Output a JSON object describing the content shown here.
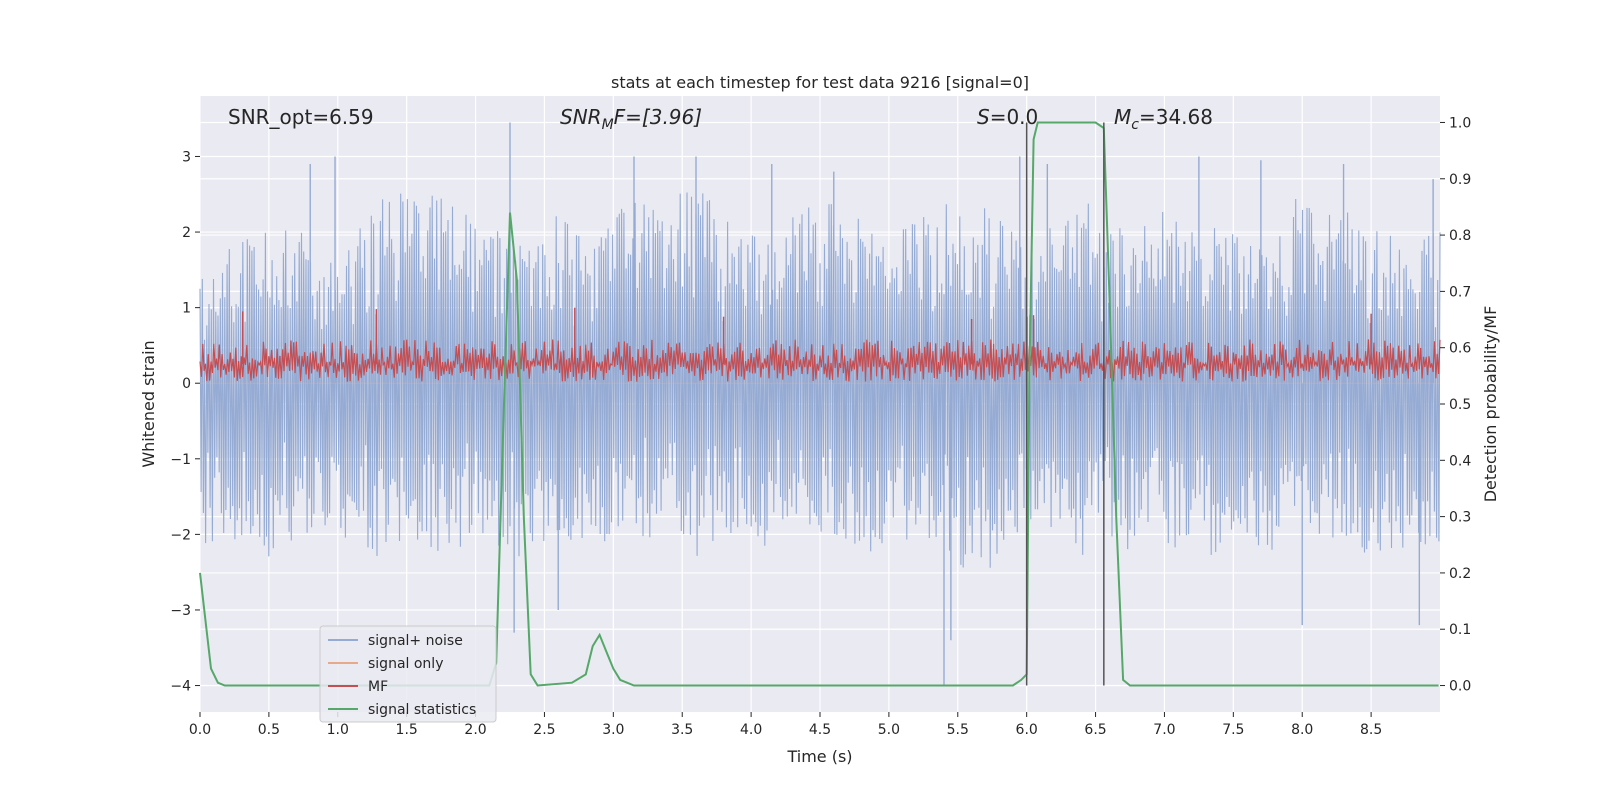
{
  "chart_data": {
    "type": "line",
    "title": "stats at each timestep for test data 9216 [signal=0]",
    "xlabel": "Time (s)",
    "ylabel_left": "Whitened strain",
    "ylabel_right": "Detection probability/MF",
    "xlim": [
      0.0,
      9.0
    ],
    "ylim_left": [
      -4.35,
      3.8
    ],
    "ylim_right": [
      -0.047,
      1.047
    ],
    "x_ticks": [
      0.0,
      0.5,
      1.0,
      1.5,
      2.0,
      2.5,
      3.0,
      3.5,
      4.0,
      4.5,
      5.0,
      5.5,
      6.0,
      6.5,
      7.0,
      7.5,
      8.0,
      8.5
    ],
    "x_tick_labels": [
      "0.0",
      "0.5",
      "1.0",
      "1.5",
      "2.0",
      "2.5",
      "3.0",
      "3.5",
      "4.0",
      "4.5",
      "5.0",
      "5.5",
      "6.0",
      "6.5",
      "7.0",
      "7.5",
      "8.0",
      "8.5"
    ],
    "y_left_ticks": [
      -4,
      -3,
      -2,
      -1,
      0,
      1,
      2,
      3
    ],
    "y_left_tick_labels": [
      "−4",
      "−3",
      "−2",
      "−1",
      "0",
      "1",
      "2",
      "3"
    ],
    "y_right_ticks": [
      0.0,
      0.1,
      0.2,
      0.3,
      0.4,
      0.5,
      0.6,
      0.7,
      0.8,
      0.9,
      1.0
    ],
    "y_right_tick_labels": [
      "0.0",
      "0.1",
      "0.2",
      "0.3",
      "0.4",
      "0.5",
      "0.6",
      "0.7",
      "0.8",
      "0.9",
      "1.0"
    ],
    "grid": true,
    "legend_position": "lower-left",
    "annotations": {
      "snr_opt": "SNR_opt=6.59",
      "snr_mf_main": "SNR",
      "snr_mf_sub": "M",
      "snr_mf_rest": "F=[3.96]",
      "s_italic": "S",
      "s_rest": "=0.0",
      "mc_italic": "M",
      "mc_sub": "c",
      "mc_rest": "=34.68"
    },
    "vertical_lines": [
      6.0,
      6.56
    ],
    "series": [
      {
        "name": "signal+ noise",
        "color": "#95abd3",
        "axis": "left",
        "kind": "noise",
        "envelope_upper": [
          1.4,
          1.9,
          2.2,
          2.0,
          1.8,
          2.5,
          2.6,
          2.5,
          2.0,
          2.2,
          2.3,
          2.0,
          2.4,
          2.4,
          2.6,
          2.2,
          1.9,
          2.4,
          2.4,
          2.1,
          2.1,
          2.5,
          2.4,
          2.0,
          2.2,
          2.4,
          2.1,
          2.3,
          2.2,
          2.0,
          1.9,
          2.5,
          2.3,
          2.2,
          2.1,
          2.0
        ],
        "envelope_lower": [
          -2.1,
          -2.2,
          -2.3,
          -2.1,
          -2.2,
          -2.4,
          -2.2,
          -2.3,
          -2.1,
          -2.3,
          -2.0,
          -2.2,
          -2.0,
          -2.1,
          -2.3,
          -2.1,
          -2.2,
          -2.0,
          -2.1,
          -2.3,
          -2.1,
          -2.3,
          -2.6,
          -2.2,
          -2.2,
          -2.3,
          -2.3,
          -2.0,
          -2.4,
          -2.2,
          -2.3,
          -2.0,
          -2.1,
          -2.3,
          -2.2,
          -2.1
        ],
        "spikes": [
          [
            0.8,
            2.9
          ],
          [
            0.98,
            3.0
          ],
          [
            2.25,
            3.45
          ],
          [
            2.28,
            -3.3
          ],
          [
            2.6,
            -3.0
          ],
          [
            3.15,
            3.0
          ],
          [
            3.6,
            3.0
          ],
          [
            4.15,
            2.9
          ],
          [
            4.6,
            2.8
          ],
          [
            5.4,
            -4.0
          ],
          [
            5.45,
            -3.4
          ],
          [
            5.95,
            3.0
          ],
          [
            6.0,
            -3.4
          ],
          [
            6.15,
            2.9
          ],
          [
            7.25,
            3.0
          ],
          [
            7.7,
            2.95
          ],
          [
            8.0,
            -3.2
          ],
          [
            8.3,
            2.9
          ],
          [
            8.85,
            -3.2
          ],
          [
            8.95,
            2.7
          ]
        ]
      },
      {
        "name": "signal only",
        "color": "#e8a98b",
        "axis": "left",
        "kind": "flat",
        "value": 0
      },
      {
        "name": "MF",
        "color": "#c44e52",
        "axis": "left",
        "kind": "noise",
        "center": 0.25,
        "envelope_upper": 0.58,
        "envelope_lower": 0.02,
        "spikes": [
          [
            0.31,
            0.95
          ],
          [
            1.28,
            0.98
          ],
          [
            2.72,
            1.0
          ],
          [
            3.8,
            0.88
          ],
          [
            5.6,
            0.85
          ],
          [
            6.05,
            0.9
          ],
          [
            8.5,
            0.92
          ]
        ]
      },
      {
        "name": "signal statistics",
        "color": "#55a868",
        "axis": "right",
        "kind": "line",
        "x": [
          0.0,
          0.08,
          0.13,
          0.18,
          2.1,
          2.15,
          2.2,
          2.25,
          2.3,
          2.35,
          2.4,
          2.45,
          2.7,
          2.8,
          2.85,
          2.9,
          2.95,
          3.0,
          3.05,
          3.1,
          3.15,
          3.25,
          5.9,
          5.96,
          6.0,
          6.02,
          6.05,
          6.08,
          6.12,
          6.5,
          6.56,
          6.6,
          6.65,
          6.7,
          6.75,
          8.99
        ],
        "y": [
          0.2,
          0.03,
          0.005,
          0.0,
          0.0,
          0.04,
          0.45,
          0.84,
          0.72,
          0.3,
          0.02,
          0.0,
          0.005,
          0.02,
          0.07,
          0.09,
          0.06,
          0.03,
          0.01,
          0.005,
          0.0,
          0.0,
          0.0,
          0.01,
          0.02,
          0.55,
          0.97,
          1.0,
          1.0,
          1.0,
          0.99,
          0.7,
          0.3,
          0.01,
          0.0,
          0.0
        ]
      }
    ]
  }
}
